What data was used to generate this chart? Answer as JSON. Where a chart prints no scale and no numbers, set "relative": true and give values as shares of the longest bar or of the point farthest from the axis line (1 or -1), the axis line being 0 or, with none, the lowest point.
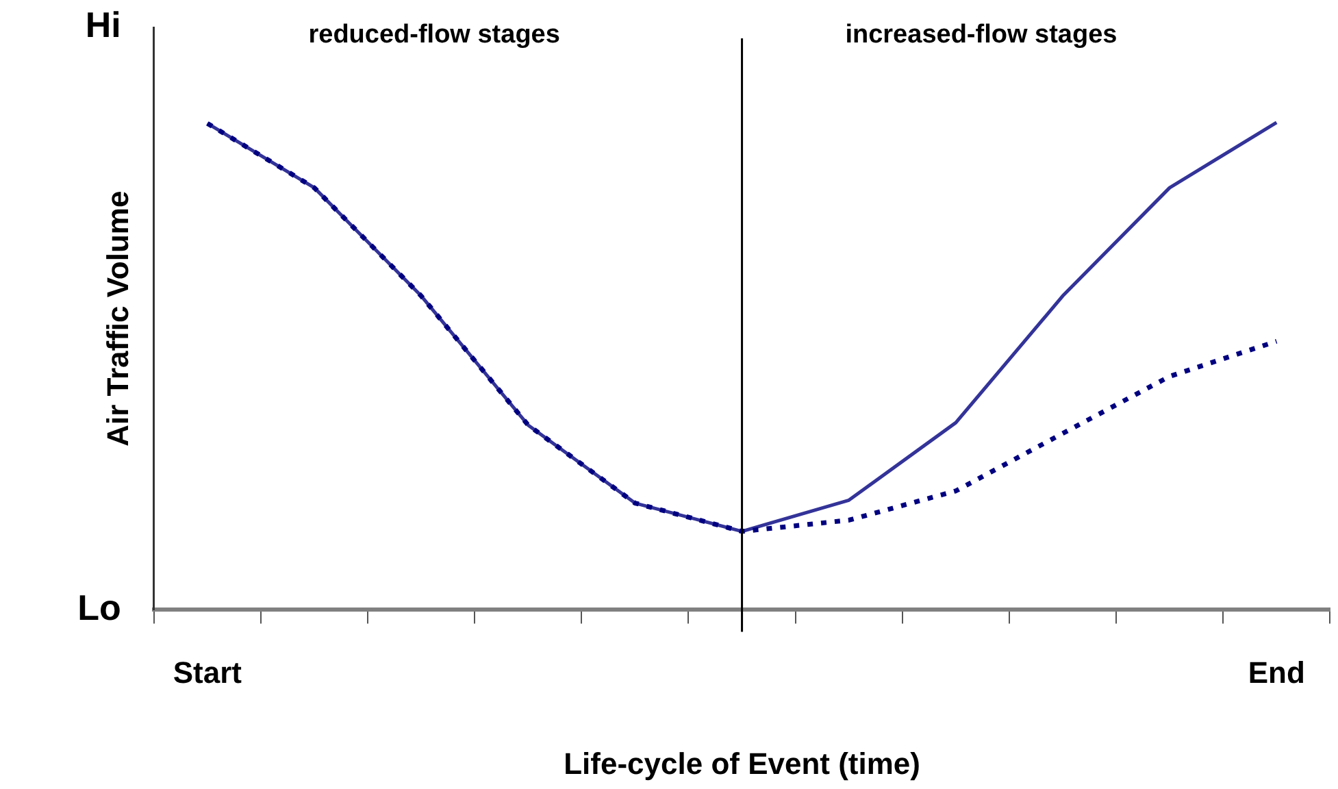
{
  "chart_data": {
    "type": "line",
    "relative": true,
    "xlabel": "Life-cycle of Event (time)",
    "ylabel": "Air Traffic Volume",
    "annotations": [
      "reduced-flow stages",
      "increased-flow stages",
      "Hi",
      "Lo"
    ],
    "categories": [
      "Start",
      null,
      null,
      null,
      null,
      null,
      null,
      null,
      null,
      null,
      "End"
    ],
    "series": [
      {
        "color": "#333399",
        "line_style": "solid",
        "values": [
          0.998,
          0.866,
          0.644,
          0.379,
          0.219,
          0.161,
          0.225,
          0.384,
          0.644,
          0.866,
          1
        ]
      },
      {
        "color": "#000080",
        "line_style": "dotted",
        "values": [
          0.998,
          0.866,
          0.644,
          0.379,
          0.219,
          0.161,
          0.184,
          0.244,
          0.362,
          0.479,
          0.551
        ]
      }
    ],
    "grid": "x",
    "legend": false,
    "marker": "none"
  }
}
